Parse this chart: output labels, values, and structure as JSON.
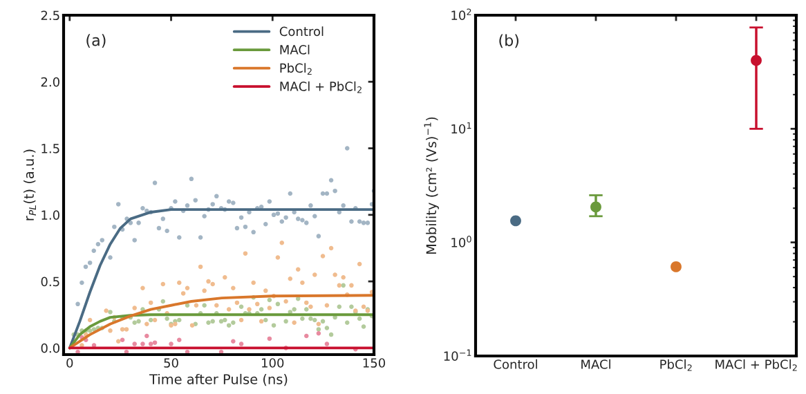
{
  "chart_data": [
    {
      "type": "scatter",
      "ylabel": "r$_{PL}$(t) (a.u.)",
      "xlabel": "Time after Pulse (ns)",
      "annotations": [
        "(a)"
      ],
      "legend": "top right",
      "grid": false,
      "xlim": [
        -3,
        150
      ],
      "xticks": [
        0,
        50,
        100,
        150
      ],
      "ylim": [
        -0.05,
        2.5
      ],
      "yticks": [
        {
          "value": 0,
          "label": "0.0"
        },
        0.5,
        {
          "value": 1,
          "label": "1.0"
        },
        1.5,
        {
          "value": 2,
          "label": "2.0"
        },
        2.5
      ],
      "series": [
        {
          "type": "scatter",
          "marker": "circle",
          "color": "#a3b5c4",
          "x": [
            4,
            6,
            7.9,
            10,
            11.9,
            14,
            16,
            20,
            22,
            24,
            26,
            28.2,
            30,
            32,
            34,
            36,
            38,
            40,
            42,
            44,
            46,
            48,
            50,
            52,
            54,
            56,
            58,
            60,
            62,
            64.5,
            66.4,
            68.4,
            70.5,
            72.4,
            74.7,
            76.5,
            78.5,
            80.6,
            82.5,
            84.6,
            86.6,
            88.5,
            90.6,
            92.5,
            94.5,
            96.6,
            98.5,
            100.6,
            102.6,
            104.6,
            106.6,
            108.7,
            110.7,
            112.6,
            114.7,
            116.7,
            118.8,
            120.8,
            122.7,
            124.8,
            126.8,
            128.9,
            130.8,
            132.9,
            134.9,
            136.8,
            138.9,
            140.9,
            142.9,
            144.9,
            146.9,
            149,
            150
          ],
          "values": [
            0.33,
            0.49,
            0.61,
            0.64,
            0.73,
            0.78,
            0.81,
            0.68,
            0.91,
            1.08,
            0.89,
            0.97,
            0.94,
            0.81,
            0.94,
            1.05,
            1.03,
            1.02,
            1.24,
            0.9,
            0.97,
            0.88,
            1.05,
            1.1,
            0.83,
            1.03,
            1.07,
            1.27,
            1.11,
            0.83,
            0.99,
            1.04,
            1.08,
            1.14,
            1.05,
            1.04,
            1.1,
            1.09,
            0.9,
            0.98,
            0.91,
            1.02,
            0.87,
            1.05,
            1.06,
            0.93,
            1.1,
            1.0,
            1.01,
            0.95,
            0.98,
            1.16,
            1.02,
            0.97,
            0.96,
            0.94,
            1.07,
            0.99,
            0.84,
            1.16,
            1.16,
            1.26,
            1.18,
            1.02,
            1.07,
            1.5,
            0.95,
            1.05,
            0.95,
            0.94,
            0.94,
            1.08,
            1.18
          ]
        },
        {
          "type": "scatter",
          "marker": "circle",
          "color": "#b3cb9c",
          "x": [
            2,
            4,
            6,
            8,
            10,
            12,
            14,
            16,
            20,
            22,
            26,
            30,
            32,
            34,
            36,
            40,
            44,
            46,
            48,
            50,
            52,
            54,
            58,
            62,
            64.5,
            66.4,
            68.4,
            70.5,
            72.4,
            74.7,
            76.5,
            78.5,
            80.6,
            84.6,
            86.6,
            88.5,
            90.6,
            92.5,
            94.5,
            96.6,
            98.5,
            100.6,
            102.6,
            106.6,
            108.7,
            110.7,
            112.6,
            114.7,
            116.7,
            118.8,
            120.8,
            122.7,
            124.8,
            126.8,
            128.9,
            130.8,
            132.9,
            134.9,
            136.8,
            138.9,
            140.9,
            142.9,
            144.9,
            146.9,
            149
          ],
          "values": [
            0.1,
            0.1,
            0.13,
            0.13,
            0.13,
            0.14,
            0.15,
            0.15,
            0.27,
            0.2,
            0.23,
            0.23,
            0.19,
            0.2,
            0.29,
            0.21,
            0.29,
            0.35,
            0.22,
            0.18,
            0.2,
            0.21,
            0.32,
            0.18,
            0.26,
            0.32,
            0.19,
            0.2,
            0.26,
            0.2,
            0.21,
            0.17,
            0.19,
            0.31,
            0.26,
            0.26,
            0.38,
            0.26,
            0.29,
            0.21,
            0.36,
            0.17,
            0.33,
            0.2,
            0.27,
            0.29,
            0.37,
            0.22,
            0.29,
            0.22,
            0.21,
            0.14,
            0.2,
            0.15,
            0.1,
            0.23,
            0.31,
            0.47,
            0.19,
            0.31,
            0.27,
            0.22,
            0.16,
            0.29,
            0.24
          ]
        },
        {
          "type": "scatter",
          "marker": "circle",
          "color": "#f0bc8f",
          "x": [
            6,
            8,
            10,
            18,
            20,
            22,
            24,
            26,
            28,
            32,
            36,
            38,
            40,
            42,
            46,
            48,
            50,
            52,
            54,
            56,
            58,
            60.4,
            62.4,
            64.5,
            66.4,
            68.4,
            70.5,
            72.4,
            76.5,
            78.5,
            80.6,
            82.5,
            84.6,
            86.6,
            88.5,
            90.6,
            92.5,
            94.5,
            96.6,
            98.5,
            100.6,
            102.6,
            104.6,
            106.6,
            108.7,
            110.7,
            112.6,
            114.7,
            116.7,
            118.8,
            120.8,
            122.7,
            124.8,
            126.8,
            128.9,
            130.8,
            132.9,
            134.9,
            136.8,
            138.9,
            140.9,
            142.9,
            144.9,
            146.9,
            149
          ],
          "values": [
            0.02,
            0.1,
            0.21,
            0.28,
            0.13,
            0.23,
            0.05,
            0.14,
            0.14,
            0.3,
            0.45,
            0.18,
            0.34,
            0.21,
            0.48,
            0.26,
            0.17,
            0.18,
            0.49,
            0.41,
            0.45,
            0.17,
            0.32,
            0.61,
            0.43,
            0.5,
            0.48,
            0.32,
            0.53,
            0.29,
            0.45,
            0.34,
            0.21,
            0.71,
            0.29,
            0.49,
            0.33,
            0.2,
            0.43,
            0.3,
            0.39,
            0.68,
            0.79,
            0.35,
            0.52,
            0.19,
            0.59,
            0.49,
            0.34,
            0.31,
            0.55,
            0.18,
            0.69,
            0.32,
            0.75,
            0.55,
            0.47,
            0.53,
            0.4,
            0.47,
            0.28,
            0.63,
            0.31,
            0.28,
            0.42
          ]
        },
        {
          "type": "scatter",
          "marker": "circle",
          "color": "#e88aa0",
          "x": [
            4,
            6,
            8,
            12,
            22,
            26,
            28,
            32,
            36,
            38,
            40,
            42,
            50,
            54,
            58,
            74.7,
            80.6,
            84.6,
            86.6,
            98.5,
            106.6,
            110.7,
            116.7,
            122.7,
            126.8,
            130.8,
            140.9
          ],
          "values": [
            -0.03,
            0.08,
            0.06,
            0.02,
            null,
            0.06,
            -0.03,
            0.03,
            0.03,
            0.09,
            0.03,
            0.04,
            0.03,
            0.06,
            -0.03,
            -0.03,
            0.05,
            0.03,
            null,
            0.07,
            0.0,
            null,
            0.09,
            0.11,
            0.03,
            null,
            -0.01
          ]
        },
        {
          "type": "line",
          "name": "Control",
          "color": "#4a6b84",
          "x": [
            0,
            5,
            10,
            15,
            20,
            25,
            30,
            40,
            50,
            150
          ],
          "values": [
            0,
            0.2,
            0.42,
            0.62,
            0.78,
            0.9,
            0.97,
            1.02,
            1.04,
            1.04
          ]
        },
        {
          "type": "line",
          "name": "MACl",
          "color": "#6a9a3c",
          "x": [
            0,
            5,
            10,
            15,
            20,
            30,
            40,
            150
          ],
          "values": [
            0,
            0.1,
            0.16,
            0.2,
            0.23,
            0.245,
            0.25,
            0.25
          ]
        },
        {
          "type": "line",
          "name": "PbCl$_{2}$",
          "color": "#d9772b",
          "x": [
            0,
            10,
            20,
            30,
            40,
            50,
            60,
            75,
            100,
            150
          ],
          "values": [
            0,
            0.1,
            0.18,
            0.24,
            0.29,
            0.32,
            0.35,
            0.375,
            0.39,
            0.395
          ]
        },
        {
          "type": "line",
          "name": "MACl + PbCl$_{2}$",
          "color": "#c8102e",
          "x": [
            0,
            150
          ],
          "values": [
            0,
            0
          ]
        }
      ]
    },
    {
      "type": "scatter",
      "ylabel": "Mobility (cm² (Vs)$^{−1}$)",
      "annotations": [
        "(b)"
      ],
      "marker": "circle",
      "log": true,
      "grid": false,
      "categories": [
        "Control",
        "MACl",
        "PbCl$_{2}$",
        "MACl + PbCl$_{2}$"
      ],
      "ylim": [
        0.1,
        100
      ],
      "yticks": [
        {
          "value": 0.1,
          "label": "10$^{−1}$"
        },
        {
          "value": 1,
          "label": "10$^{0}$"
        },
        {
          "value": 10,
          "label": "10$^{1}$"
        },
        {
          "value": 100,
          "label": "10$^{2}$"
        }
      ],
      "series": [
        {
          "values": [
            1.55,
            2.05,
            0.61,
            40
          ],
          "colors": [
            "#4a6b84",
            "#6a9a3c",
            "#d9772b",
            "#c8102e"
          ],
          "errors": [
            null,
            [
              1.7,
              2.6
            ],
            null,
            [
              10,
              78
            ]
          ]
        }
      ]
    }
  ]
}
